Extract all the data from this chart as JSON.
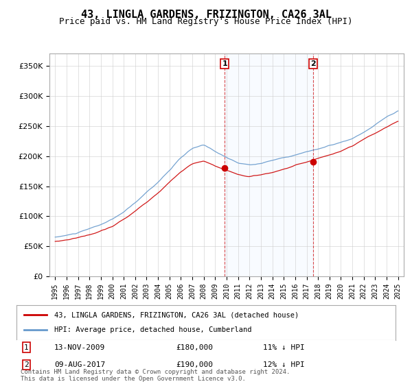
{
  "title": "43, LINGLA GARDENS, FRIZINGTON, CA26 3AL",
  "subtitle": "Price paid vs. HM Land Registry's House Price Index (HPI)",
  "ylim": [
    0,
    370000
  ],
  "yticks": [
    0,
    50000,
    100000,
    150000,
    200000,
    250000,
    300000,
    350000
  ],
  "hpi_color": "#6699cc",
  "price_color": "#cc0000",
  "purchase1_date_idx": 15,
  "purchase1_price": 180000,
  "purchase1_label": "1",
  "purchase1_text": "13-NOV-2009",
  "purchase1_pct": "11% ↓ HPI",
  "purchase2_date_idx": 23,
  "purchase2_price": 190000,
  "purchase2_label": "2",
  "purchase2_text": "09-AUG-2017",
  "purchase2_pct": "12% ↓ HPI",
  "legend_house_label": "43, LINGLA GARDENS, FRIZINGTON, CA26 3AL (detached house)",
  "legend_hpi_label": "HPI: Average price, detached house, Cumberland",
  "footer": "Contains HM Land Registry data © Crown copyright and database right 2024.\nThis data is licensed under the Open Government Licence v3.0.",
  "background_color": "#f0f4ff",
  "plot_bg_color": "#ffffff"
}
